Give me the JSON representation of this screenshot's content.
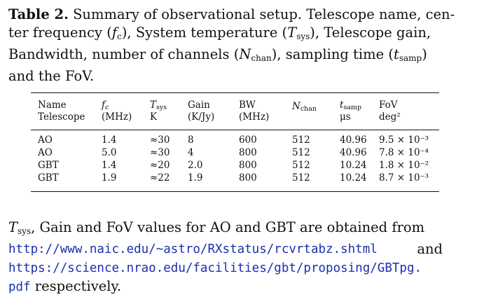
{
  "caption": {
    "label": "Table 2.",
    "text_1": " Summary of observational setup. Telescope name, cen-",
    "text_2a": "ter frequency (",
    "fc_sym": "f",
    "fc_sub": "c",
    "text_2b": "), System temperature (",
    "tsys_sym": "T",
    "tsys_sub": "sys",
    "text_2c": "), Telescope gain,",
    "text_3a": "Bandwidth, number of channels (",
    "nchan_sym": "N",
    "nchan_sub": "chan",
    "text_3b": "), sampling time (",
    "tsamp_sym": "t",
    "tsamp_sub": "samp",
    "text_3c": ")",
    "text_4": "and the FoV."
  },
  "table": {
    "headers": [
      {
        "line1": "Name",
        "line2": "Telescope"
      },
      {
        "line1": "f_c",
        "line2": "(MHz)"
      },
      {
        "line1": "T_sys",
        "line2": "K"
      },
      {
        "line1": "Gain",
        "line2": "(K/Jy)"
      },
      {
        "line1": "BW",
        "line2": "(MHz)"
      },
      {
        "line1": "N_chan",
        "line2": ""
      },
      {
        "line1": "t_samp",
        "line2": "μs"
      },
      {
        "line1": "FoV",
        "line2": "deg²"
      }
    ],
    "rows": [
      [
        "AO",
        "1.4",
        "≈30",
        "8",
        "600",
        "512",
        "40.96",
        "9.5 × 10⁻³"
      ],
      [
        "AO",
        "5.0",
        "≈30",
        "4",
        "800",
        "512",
        "40.96",
        "7.8 × 10⁻⁴"
      ],
      [
        "GBT",
        "1.4",
        "≈20",
        "2.0",
        "800",
        "512",
        "10.24",
        "1.8 × 10⁻²"
      ],
      [
        "GBT",
        "1.9",
        "≈22",
        "1.9",
        "800",
        "512",
        "10.24",
        "8.7 × 10⁻³"
      ]
    ]
  },
  "note": {
    "tsys_sym": "T",
    "tsys_sub": "sys",
    "text_1": ", Gain and FoV values for AO and GBT are obtained from",
    "url_1": "http://www.naic.edu/~astro/RXstatus/rcvrtabz.shtml",
    "and": "and",
    "url_2": "https://science.nrao.edu/facilities/gbt/proposing/GBTpg.",
    "url_2_cont": "pdf",
    "text_end": " respectively."
  }
}
